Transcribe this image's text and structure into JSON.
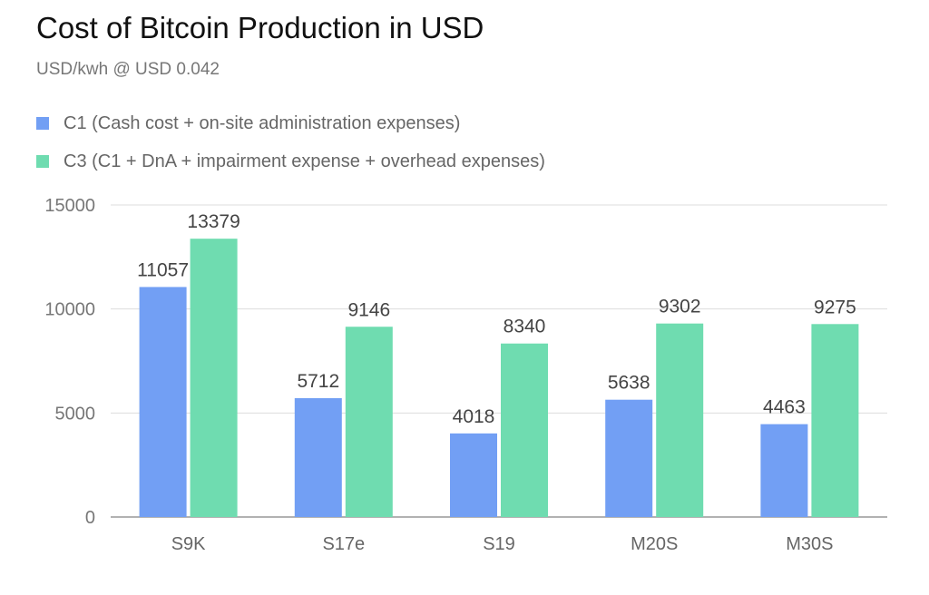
{
  "chart_data": {
    "type": "bar",
    "title": "Cost of Bitcoin Production in USD",
    "subtitle": "USD/kwh @ USD 0.042",
    "categories": [
      "S9K",
      "S17e",
      "S19",
      "M20S",
      "M30S"
    ],
    "series": [
      {
        "name": "C1 (Cash cost + on-site administration expenses)",
        "color": "#729ff4",
        "values": [
          11057,
          5712,
          4018,
          5638,
          4463
        ]
      },
      {
        "name": "C3  (C1 + DnA + impairment expense + overhead expenses)",
        "color": "#6fdcb0",
        "values": [
          13379,
          9146,
          8340,
          9302,
          9275
        ]
      }
    ],
    "ylim": [
      0,
      15000
    ],
    "yticks": [
      "0",
      "5000",
      "10000",
      "15000"
    ],
    "grid": true,
    "legend_position": "top-left",
    "xlabel": "",
    "ylabel": ""
  }
}
